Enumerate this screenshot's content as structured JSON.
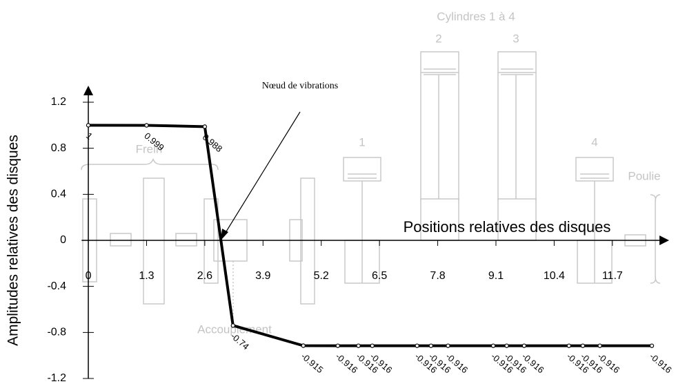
{
  "chart_data": {
    "type": "line",
    "x_label": "Positions relatives des disques",
    "y_label": "Amplitudes relatives des disques",
    "x": [
      0,
      1.3,
      2.6,
      3.23,
      4.8,
      5.57,
      6.03,
      6.34,
      7.34,
      7.65,
      8.03,
      9.04,
      9.34,
      9.73,
      10.73,
      11.04,
      11.42,
      12.58
    ],
    "values": [
      1,
      0.999,
      0.988,
      -0.74,
      -0.915,
      -0.916,
      -0.916,
      -0.916,
      -0.916,
      -0.916,
      -0.916,
      -0.916,
      -0.916,
      -0.916,
      -0.916,
      -0.916,
      -0.916,
      -0.916
    ],
    "color": "#000000",
    "xlim": [
      -0.15,
      12.75
    ],
    "ylim": [
      -1.2,
      1.2
    ],
    "xticks": [
      0,
      1.3,
      2.6,
      3.9,
      5.2,
      6.5,
      7.8,
      9.1,
      10.4,
      11.7
    ],
    "yticks": [
      -1.2,
      -0.8,
      -0.4,
      0,
      0.4,
      0.8,
      1.2
    ],
    "annotations": [
      "Nœud de vibrations",
      "Cylindres 1 à 4",
      "1",
      "2",
      "3",
      "4",
      "Frein",
      "Accouplement",
      "Poulie"
    ]
  }
}
